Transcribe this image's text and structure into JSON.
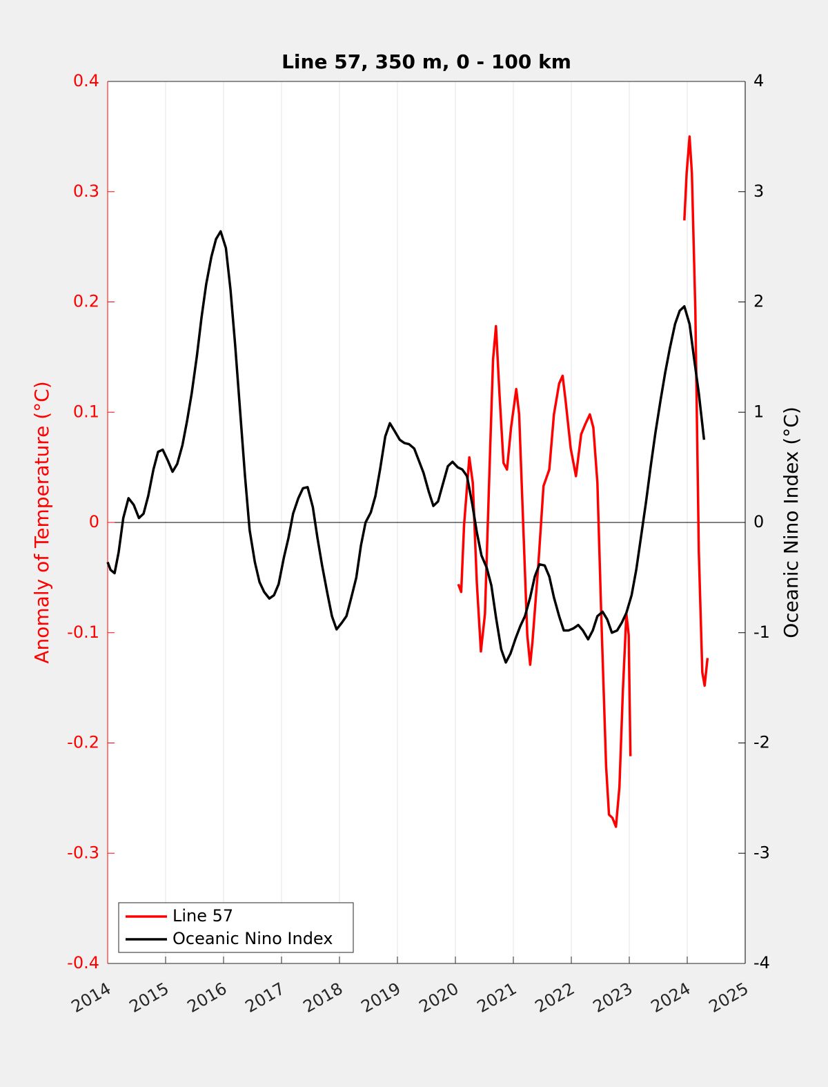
{
  "chart_data": {
    "type": "line",
    "title": "Line 57, 350 m, 0 - 100 km",
    "ylabel": "Anomaly of Temperature (°C)",
    "y2label": "Oceanic Nino Index (°C)",
    "xlim": [
      2014,
      2025
    ],
    "xticks": [
      2014,
      2015,
      2016,
      2017,
      2018,
      2019,
      2020,
      2021,
      2022,
      2023,
      2024,
      2025
    ],
    "ylim": [
      -0.4,
      0.4
    ],
    "yticks": [
      -0.4,
      -0.3,
      -0.2,
      -0.1,
      0,
      0.1,
      0.2,
      0.3,
      0.4
    ],
    "y2lim": [
      -4,
      4
    ],
    "y2ticks": [
      -4,
      -3,
      -2,
      -1,
      0,
      1,
      2,
      3,
      4
    ],
    "grid": true,
    "legend": "lower left",
    "ycolor": "#ff0000",
    "y2color": "#000000",
    "series": [
      {
        "name": "Line 57",
        "color": "#ff0000",
        "x": [
          2020.05,
          2020.1,
          2020.15,
          2020.24,
          2020.3,
          2020.37,
          2020.44,
          2020.51,
          2020.6,
          2020.65,
          2020.7,
          2020.76,
          2020.83,
          2020.89,
          2020.96,
          2021.05,
          2021.1,
          2021.17,
          2021.24,
          2021.29,
          2021.33,
          2021.43,
          2021.52,
          2021.62,
          2021.7,
          2021.79,
          2021.85,
          2021.9,
          2021.99,
          2022.08,
          2022.17,
          2022.24,
          2022.32,
          2022.38,
          2022.45,
          2022.52,
          2022.6,
          2022.65,
          2022.71,
          2022.77,
          2022.83,
          2022.89,
          2022.95,
          2022.99,
          2023.02,
          null,
          2023.95,
          2023.99,
          2024.04,
          2024.08,
          2024.14,
          2024.2,
          2024.26,
          2024.3,
          2024.35
        ],
        "values": [
          -0.056,
          -0.063,
          -0.002,
          0.059,
          0.036,
          -0.055,
          -0.117,
          -0.083,
          0.067,
          0.148,
          0.178,
          0.117,
          0.054,
          0.048,
          0.086,
          0.121,
          0.098,
          -0.002,
          -0.102,
          -0.129,
          -0.108,
          -0.039,
          0.033,
          0.048,
          0.098,
          0.126,
          0.133,
          0.111,
          0.067,
          0.042,
          0.08,
          0.089,
          0.098,
          0.086,
          0.036,
          -0.09,
          -0.221,
          -0.265,
          -0.268,
          -0.276,
          -0.24,
          -0.152,
          -0.083,
          -0.102,
          -0.212,
          null,
          0.274,
          0.317,
          0.35,
          0.317,
          0.192,
          -0.027,
          -0.136,
          -0.148,
          -0.123
        ]
      },
      {
        "name": "Oceanic Nino Index",
        "color": "#000000",
        "axis": "y2",
        "x": [
          2014.0,
          2014.05,
          2014.12,
          2014.19,
          2014.27,
          2014.36,
          2014.45,
          2014.54,
          2014.62,
          2014.7,
          2014.79,
          2014.87,
          2014.95,
          2015.04,
          2015.12,
          2015.2,
          2015.29,
          2015.37,
          2015.45,
          2015.54,
          2015.62,
          2015.7,
          2015.79,
          2015.87,
          2015.95,
          2016.04,
          2016.12,
          2016.2,
          2016.29,
          2016.37,
          2016.45,
          2016.54,
          2016.62,
          2016.7,
          2016.79,
          2016.87,
          2016.95,
          2017.04,
          2017.12,
          2017.2,
          2017.29,
          2017.37,
          2017.45,
          2017.54,
          2017.62,
          2017.7,
          2017.79,
          2017.87,
          2017.95,
          2018.04,
          2018.12,
          2018.2,
          2018.29,
          2018.37,
          2018.45,
          2018.54,
          2018.62,
          2018.7,
          2018.79,
          2018.87,
          2018.95,
          2019.04,
          2019.12,
          2019.2,
          2019.29,
          2019.37,
          2019.45,
          2019.54,
          2019.62,
          2019.7,
          2019.79,
          2019.87,
          2019.95,
          2020.04,
          2020.12,
          2020.2,
          2020.29,
          2020.37,
          2020.45,
          2020.54,
          2020.62,
          2020.7,
          2020.79,
          2020.87,
          2020.95,
          2021.04,
          2021.12,
          2021.2,
          2021.29,
          2021.37,
          2021.45,
          2021.54,
          2021.62,
          2021.7,
          2021.79,
          2021.87,
          2021.95,
          2022.04,
          2022.12,
          2022.2,
          2022.29,
          2022.37,
          2022.45,
          2022.54,
          2022.62,
          2022.7,
          2022.79,
          2022.87,
          2022.95,
          2023.04,
          2023.12,
          2023.2,
          2023.29,
          2023.37,
          2023.45,
          2023.54,
          2023.62,
          2023.7,
          2023.79,
          2023.87,
          2023.95,
          2024.04,
          2024.12,
          2024.2,
          2024.29
        ],
        "values": [
          -0.36,
          -0.43,
          -0.46,
          -0.27,
          0.04,
          0.22,
          0.16,
          0.04,
          0.08,
          0.24,
          0.48,
          0.64,
          0.66,
          0.56,
          0.46,
          0.53,
          0.7,
          0.92,
          1.17,
          1.51,
          1.86,
          2.16,
          2.41,
          2.57,
          2.64,
          2.49,
          2.11,
          1.61,
          0.98,
          0.42,
          -0.07,
          -0.36,
          -0.54,
          -0.63,
          -0.69,
          -0.66,
          -0.56,
          -0.32,
          -0.14,
          0.08,
          0.22,
          0.31,
          0.32,
          0.14,
          -0.14,
          -0.39,
          -0.64,
          -0.85,
          -0.97,
          -0.91,
          -0.85,
          -0.69,
          -0.5,
          -0.21,
          0.0,
          0.09,
          0.24,
          0.48,
          0.78,
          0.9,
          0.83,
          0.75,
          0.72,
          0.71,
          0.67,
          0.56,
          0.45,
          0.28,
          0.15,
          0.19,
          0.36,
          0.51,
          0.55,
          0.5,
          0.48,
          0.42,
          0.17,
          -0.09,
          -0.3,
          -0.41,
          -0.57,
          -0.86,
          -1.15,
          -1.27,
          -1.19,
          -1.05,
          -0.94,
          -0.85,
          -0.68,
          -0.49,
          -0.38,
          -0.39,
          -0.49,
          -0.68,
          -0.85,
          -0.98,
          -0.98,
          -0.96,
          -0.93,
          -0.98,
          -1.06,
          -0.98,
          -0.85,
          -0.81,
          -0.88,
          -1.0,
          -0.98,
          -0.91,
          -0.82,
          -0.66,
          -0.43,
          -0.14,
          0.19,
          0.51,
          0.81,
          1.11,
          1.36,
          1.58,
          1.8,
          1.92,
          1.96,
          1.8,
          1.48,
          1.17,
          0.75
        ]
      }
    ]
  }
}
